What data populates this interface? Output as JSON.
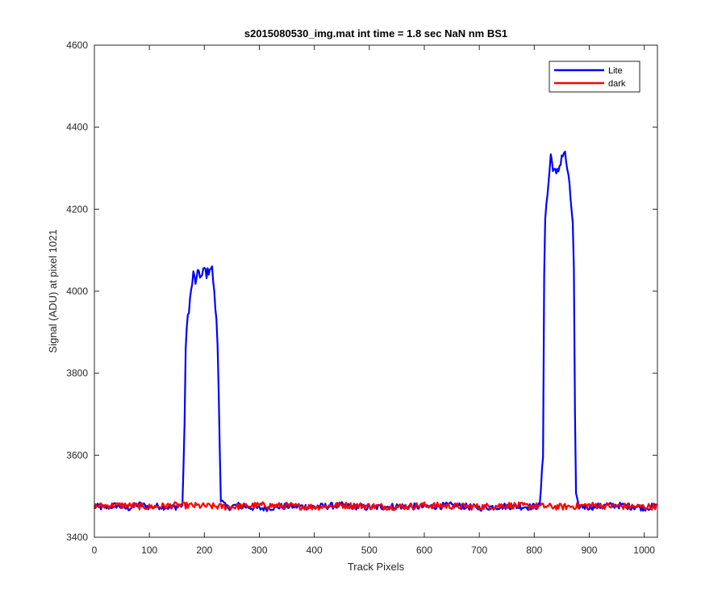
{
  "chart_data": {
    "type": "line",
    "title": "s2015080530_img.mat int time = 1.8 sec  NaN nm BS1",
    "xlabel": "Track Pixels",
    "ylabel": "Signal (ADU) at pixel 1021",
    "xlim": [
      0,
      1024
    ],
    "ylim": [
      3400,
      4600
    ],
    "xticks": [
      0,
      100,
      200,
      300,
      400,
      500,
      600,
      700,
      800,
      900,
      1000
    ],
    "yticks": [
      3400,
      3600,
      3800,
      4000,
      4200,
      4400,
      4600
    ],
    "grid": false,
    "legend_position": "top-right",
    "series": [
      {
        "name": "Lite",
        "color": "#0000ff",
        "x": [
          0,
          20,
          40,
          60,
          80,
          100,
          120,
          140,
          160,
          163,
          166,
          170,
          175,
          180,
          185,
          190,
          195,
          200,
          205,
          210,
          215,
          218,
          221,
          224,
          227,
          230,
          240,
          260,
          300,
          350,
          400,
          450,
          500,
          550,
          600,
          650,
          700,
          750,
          790,
          810,
          816,
          818,
          820,
          825,
          830,
          835,
          840,
          845,
          850,
          855,
          860,
          865,
          870,
          872,
          874,
          876,
          880,
          900,
          950,
          1000,
          1023
        ],
        "y": [
          3475,
          3472,
          3478,
          3470,
          3480,
          3474,
          3476,
          3472,
          3478,
          3600,
          3860,
          3940,
          3990,
          4040,
          4020,
          4050,
          4030,
          4055,
          4040,
          4060,
          4050,
          3990,
          3950,
          3870,
          3700,
          3490,
          3472,
          3478,
          3470,
          3476,
          3474,
          3478,
          3472,
          3476,
          3474,
          3478,
          3472,
          3476,
          3474,
          3476,
          3600,
          4050,
          4180,
          4250,
          4330,
          4300,
          4280,
          4300,
          4330,
          4340,
          4300,
          4240,
          4170,
          4050,
          3700,
          3500,
          3476,
          3474,
          3478,
          3472,
          3476
        ]
      },
      {
        "name": "dark",
        "color": "#ff0000",
        "x": [
          0,
          50,
          100,
          150,
          200,
          250,
          300,
          350,
          400,
          450,
          500,
          550,
          600,
          650,
          700,
          750,
          800,
          850,
          900,
          950,
          1000,
          1023
        ],
        "y": [
          3476,
          3478,
          3474,
          3478,
          3476,
          3474,
          3478,
          3476,
          3474,
          3478,
          3476,
          3474,
          3478,
          3476,
          3474,
          3478,
          3476,
          3474,
          3478,
          3476,
          3474,
          3476
        ]
      }
    ]
  }
}
